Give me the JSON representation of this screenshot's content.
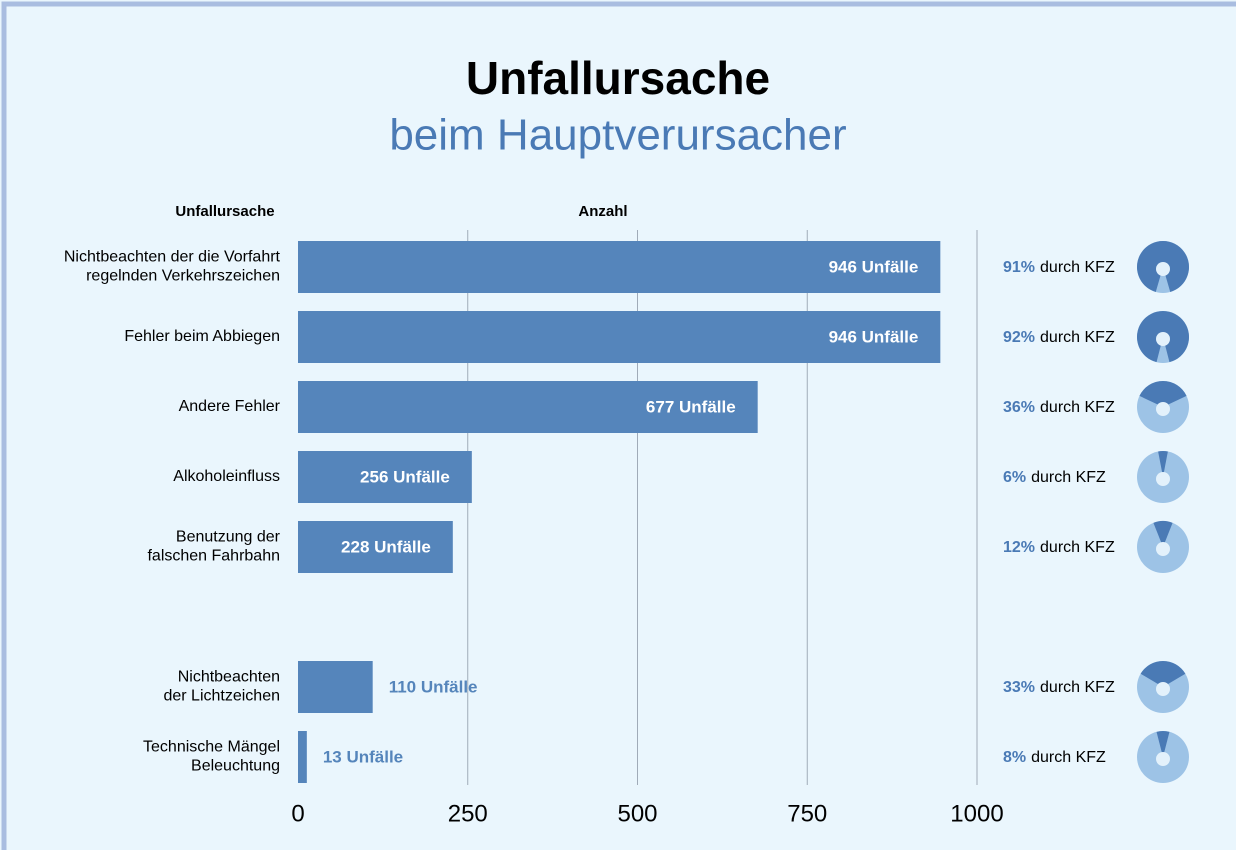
{
  "chart_data": {
    "type": "bar",
    "orientation": "horizontal",
    "title": "Unfallursache",
    "subtitle": "beim Hauptverursacher",
    "category_header": "Unfallursache",
    "value_header": "Anzahl",
    "categories": [
      "Nichtbeachten der die Vorfahrt\nregelnden Verkehrszeichen",
      "Fehler beim Abbiegen",
      "Andere Fehler",
      "Alkoholeinfluss",
      "Benutzung der\nfalschen Fahrbahn",
      null,
      "Nichtbeachten\nder Lichtzeichen",
      "Technische Mängel\nBeleuchtung"
    ],
    "values": [
      946,
      946,
      677,
      256,
      228,
      null,
      110,
      13
    ],
    "value_labels": [
      "946 Unfälle",
      "946 Unfälle",
      "677 Unfälle",
      "256 Unfälle",
      "228 Unfälle",
      null,
      "110 Unfälle",
      "13 Unfälle"
    ],
    "color": "#5585bb",
    "shares": [
      91,
      92,
      36,
      6,
      12,
      null,
      33,
      8
    ],
    "share_labels": [
      "91%",
      "92%",
      "36%",
      "6%",
      "12%",
      null,
      "33%",
      "8%"
    ],
    "share_suffix": "durch KFZ",
    "share_color": "#4a7ab5",
    "share_rest_color": "#9dc3e6",
    "xlim": [
      0,
      1000
    ],
    "xticks": [
      0,
      250,
      500,
      750,
      1000
    ],
    "grid": true
  }
}
